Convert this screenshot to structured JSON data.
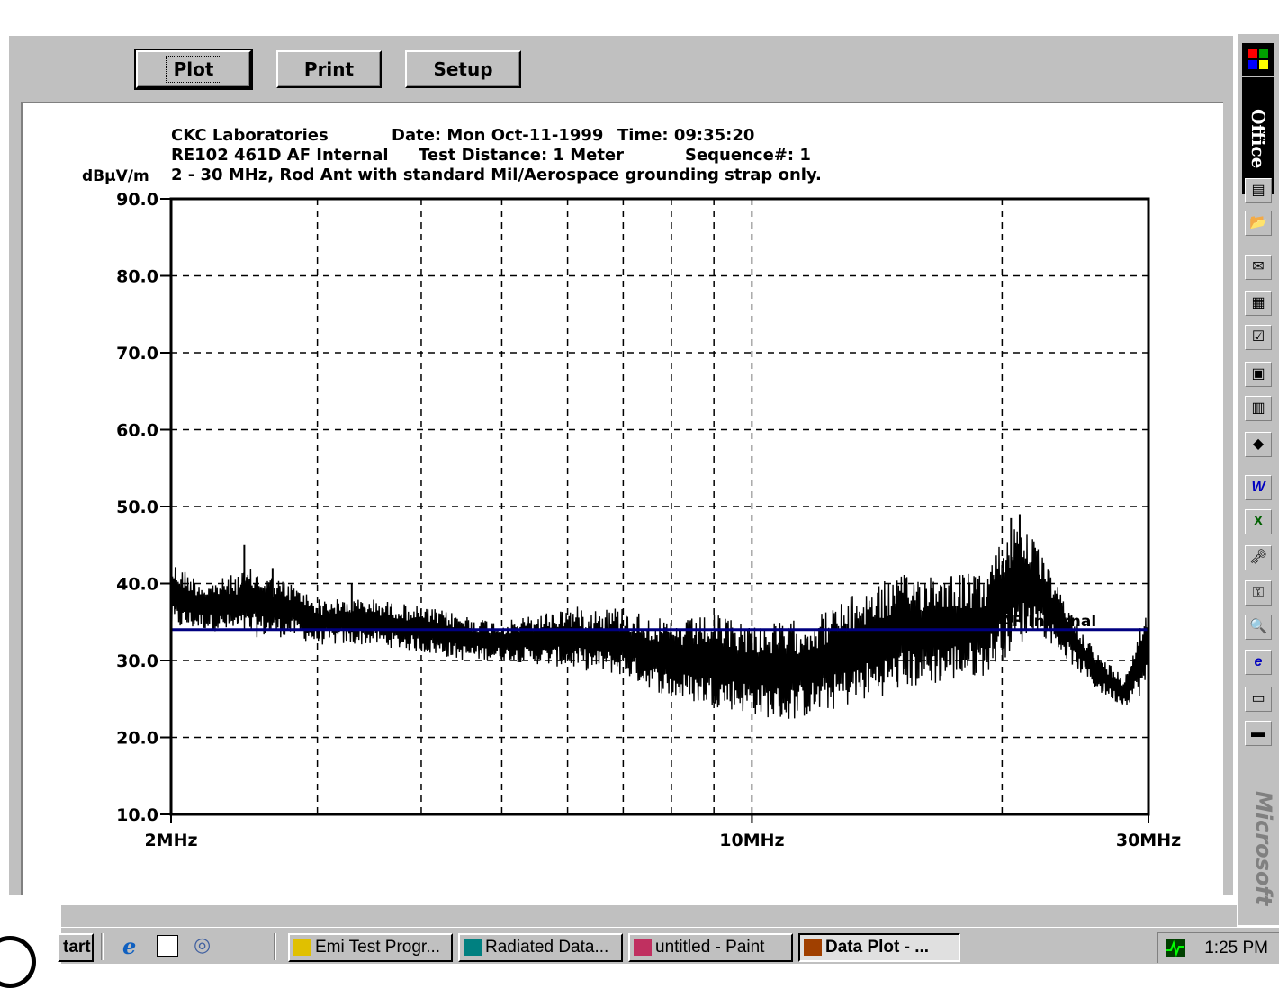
{
  "toolbar": {
    "plot_label": "Plot",
    "print_label": "Print",
    "setup_label": "Setup"
  },
  "chart_header": {
    "company": "CKC Laboratories",
    "date": "Date: Mon Oct-11-1999",
    "time": "Time: 09:35:20",
    "test": "RE102 461D AF Internal",
    "distance": "Test Distance: 1 Meter",
    "sequence": "Sequence#:  1",
    "description": "2 - 30 MHz, Rod Ant with standard Mil/Aerospace grounding strap only.",
    "unit": "dBµV/m"
  },
  "chart_data": {
    "type": "line",
    "title": "CKC Laboratories",
    "ylabel": "dBµV/m",
    "x_scale": "log",
    "xlim": [
      2,
      30
    ],
    "ylim": [
      10,
      90
    ],
    "x_tick_labels": [
      "2MHz",
      "10MHz",
      "30MHz"
    ],
    "x_ticks": [
      2,
      10,
      30
    ],
    "y_tick_labels": [
      "90.0",
      "80.0",
      "70.0",
      "60.0",
      "50.0",
      "40.0",
      "30.0",
      "20.0",
      "10.0"
    ],
    "y_ticks": [
      90,
      80,
      70,
      60,
      50,
      40,
      30,
      20,
      10
    ],
    "x_gridlines": [
      3,
      4,
      5,
      6,
      7,
      8,
      9,
      20
    ],
    "grid": true,
    "limit_line": {
      "label": "RE102 461D AF Internal",
      "y": 34,
      "color": "#000080"
    },
    "series": [
      {
        "color": "#000000",
        "envelope": {
          "x": [
            2,
            2.2,
            2.5,
            2.8,
            3,
            3.5,
            4,
            4.5,
            5,
            6,
            7,
            8,
            9,
            10,
            11,
            12,
            13,
            14,
            15,
            17,
            19,
            20,
            21,
            22,
            24,
            26,
            28,
            30
          ],
          "upper": [
            43,
            40,
            42,
            40,
            38,
            38,
            37,
            36,
            35,
            37,
            37,
            35,
            36,
            35,
            35,
            36,
            38,
            40,
            41,
            42,
            41,
            46,
            49,
            45,
            37,
            31,
            28,
            38
          ],
          "lower": [
            34,
            34,
            33,
            33,
            32,
            32,
            31,
            30,
            30,
            29,
            28,
            25,
            24,
            23,
            22,
            23,
            24,
            25,
            26,
            27,
            28,
            30,
            32,
            34,
            30,
            26,
            24,
            26
          ]
        },
        "peaks": [
          {
            "x": 2.45,
            "y": 45
          },
          {
            "x": 2.65,
            "y": 42
          },
          {
            "x": 3.3,
            "y": 40
          },
          {
            "x": 20.5,
            "y": 48.5
          },
          {
            "x": 21.0,
            "y": 49
          }
        ]
      }
    ]
  },
  "office_bar": {
    "label": "Office",
    "brand": "Microsoft",
    "icons": [
      "new-document-icon",
      "open-document-icon",
      "new-message-icon",
      "appointment-icon",
      "task-icon",
      "contact-icon",
      "journal-icon",
      "note-icon",
      "word-icon",
      "excel-icon",
      "access-icon",
      "key-icon",
      "find-icon",
      "internet-explorer-icon",
      "folder-icon",
      "binder-icon"
    ]
  },
  "taskbar": {
    "start_label": "tart",
    "items": [
      {
        "label": "Emi Test Progr...",
        "icon": "folder-icon",
        "active": false
      },
      {
        "label": "Radiated Data...",
        "icon": "app-window-icon",
        "active": false
      },
      {
        "label": "untitled - Paint",
        "icon": "paint-icon",
        "active": false
      },
      {
        "label": "Data Plot - ...",
        "icon": "chart-icon",
        "active": true
      }
    ],
    "clock": "1:25 PM"
  }
}
